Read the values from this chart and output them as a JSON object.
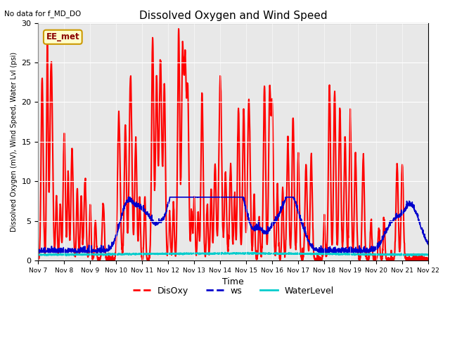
{
  "title": "Dissolved Oxygen and Wind Speed",
  "top_left_text": "No data for f_MD_DO",
  "ylabel": "Dissolved Oxygen (mV), Wind Speed, Water Lvl (psi)",
  "xlabel": "Time",
  "annotation_box": "EE_met",
  "ylim": [
    0,
    30
  ],
  "yticks": [
    0,
    5,
    10,
    15,
    20,
    25,
    30
  ],
  "xtick_labels": [
    "Nov 7",
    "Nov 8",
    "Nov 9",
    "Nov 10",
    "Nov 11",
    "Nov 12",
    "Nov 13",
    "Nov 14",
    "Nov 15",
    "Nov 16",
    "Nov 17",
    "Nov 18",
    "Nov 19",
    "Nov 20",
    "Nov 21",
    "Nov 22"
  ],
  "background_color": "#e8e8e8",
  "legend_labels": [
    "DisOxy",
    "ws",
    "WaterLevel"
  ],
  "do_color": "#ff0000",
  "ws_color": "#0000cc",
  "wl_color": "#00cccc",
  "do_linewidth": 1.5,
  "ws_linewidth": 1.2,
  "wl_linewidth": 1.5,
  "seed": 42
}
